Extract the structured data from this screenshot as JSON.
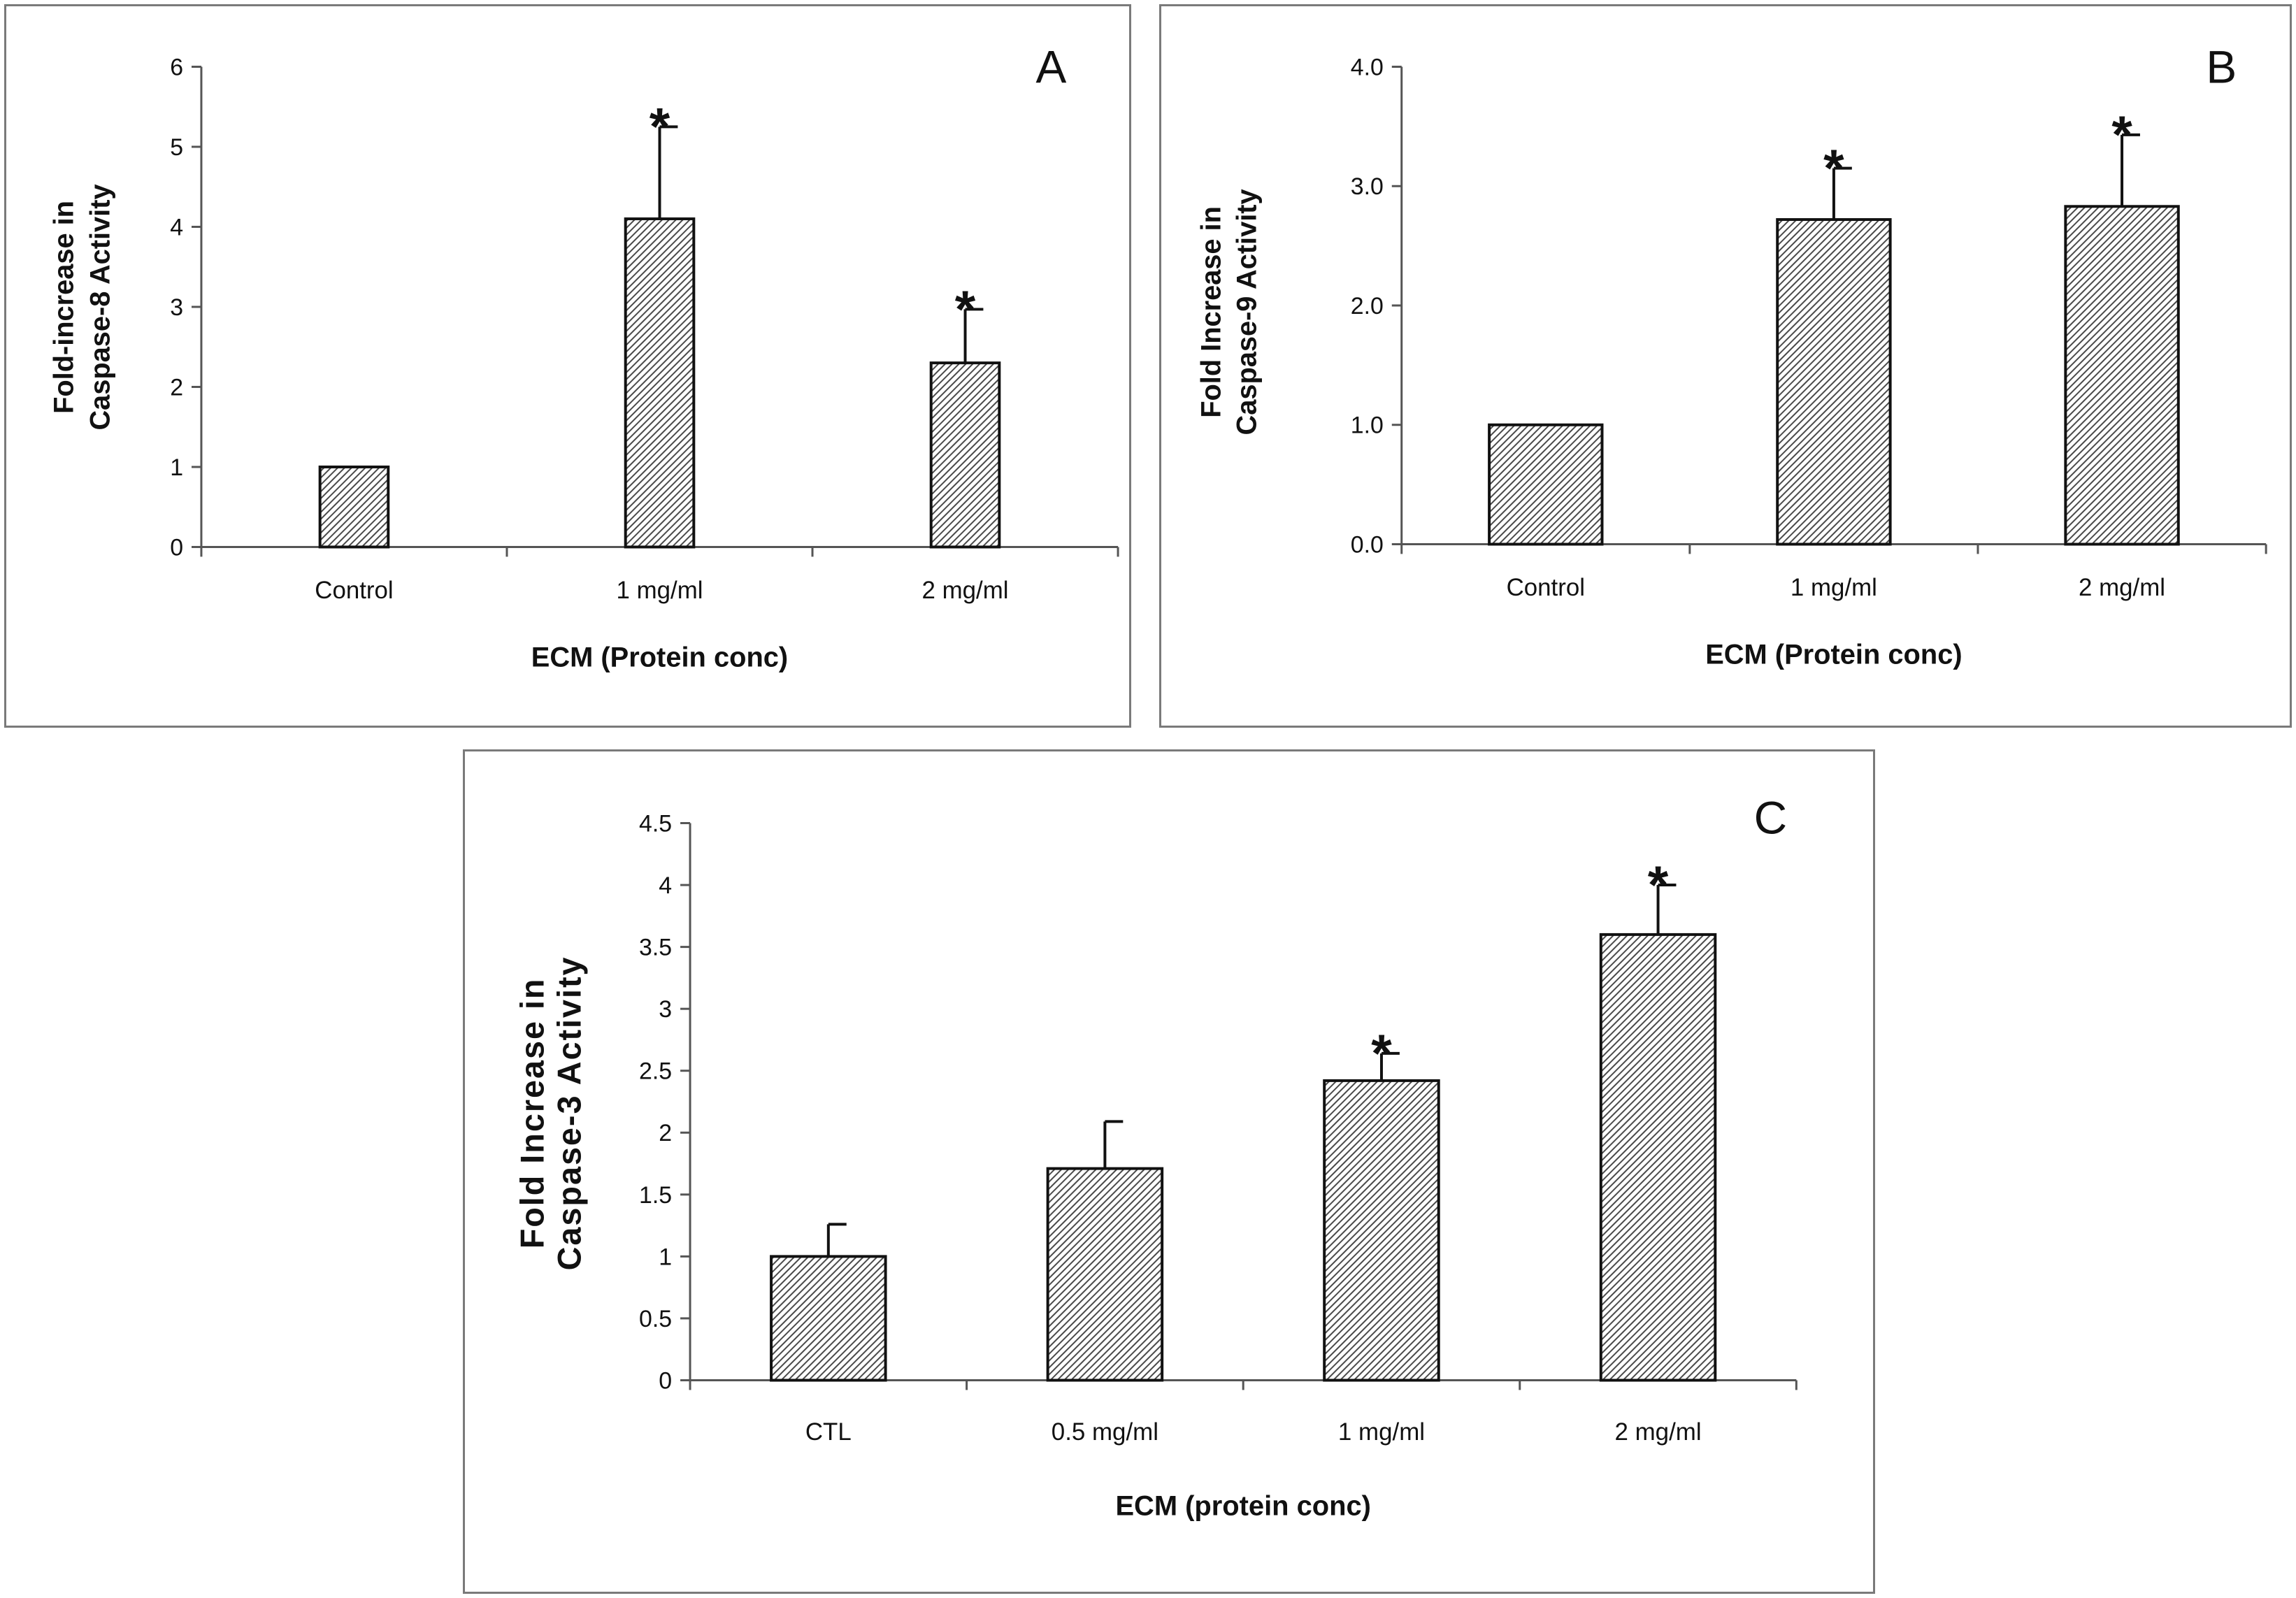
{
  "chart_data": [
    {
      "type": "bar",
      "panel": "A",
      "ylabel": [
        "Fold-increase in",
        "Caspase-8 Activity"
      ],
      "xlabel": "ECM (Protein conc)",
      "categories": [
        "Control",
        "1 mg/ml",
        "2 mg/ml"
      ],
      "values": [
        1.0,
        4.1,
        2.3
      ],
      "errors": [
        0,
        1.15,
        0.67
      ],
      "significance": [
        "",
        "*",
        "*"
      ],
      "ylim": [
        0,
        6
      ],
      "yticks": [
        0,
        1,
        2,
        3,
        4,
        5,
        6
      ],
      "ytick_labels": [
        "0",
        "1",
        "2",
        "3",
        "4",
        "5",
        "6"
      ]
    },
    {
      "type": "bar",
      "panel": "B",
      "ylabel": [
        "Fold Increase in",
        "Caspase-9 Activity"
      ],
      "xlabel": "ECM (Protein conc)",
      "categories": [
        "Control",
        "1 mg/ml",
        "2 mg/ml"
      ],
      "values": [
        1.0,
        2.72,
        2.83
      ],
      "errors": [
        0,
        0.43,
        0.6
      ],
      "significance": [
        "",
        "*",
        "*"
      ],
      "ylim": [
        0,
        4
      ],
      "yticks": [
        0,
        1,
        2,
        3,
        4
      ],
      "ytick_labels": [
        "0.0",
        "1.0",
        "2.0",
        "3.0",
        "4.0"
      ]
    },
    {
      "type": "bar",
      "panel": "C",
      "ylabel": [
        "Fold Increase in",
        "Caspase-3 Activity"
      ],
      "xlabel": "ECM (protein conc)",
      "categories": [
        "CTL",
        "0.5 mg/ml",
        "1 mg/ml",
        "2 mg/ml"
      ],
      "values": [
        1.0,
        1.71,
        2.42,
        3.6
      ],
      "errors": [
        0.26,
        0.38,
        0.22,
        0.4
      ],
      "significance": [
        "",
        "",
        "*",
        "*"
      ],
      "ylim": [
        0,
        4.5
      ],
      "yticks": [
        0,
        0.5,
        1,
        1.5,
        2,
        2.5,
        3,
        3.5,
        4,
        4.5
      ],
      "ytick_labels": [
        "0",
        "0.5",
        "1",
        "1.5",
        "2",
        "2.5",
        "3",
        "3.5",
        "4",
        "4.5"
      ]
    }
  ]
}
